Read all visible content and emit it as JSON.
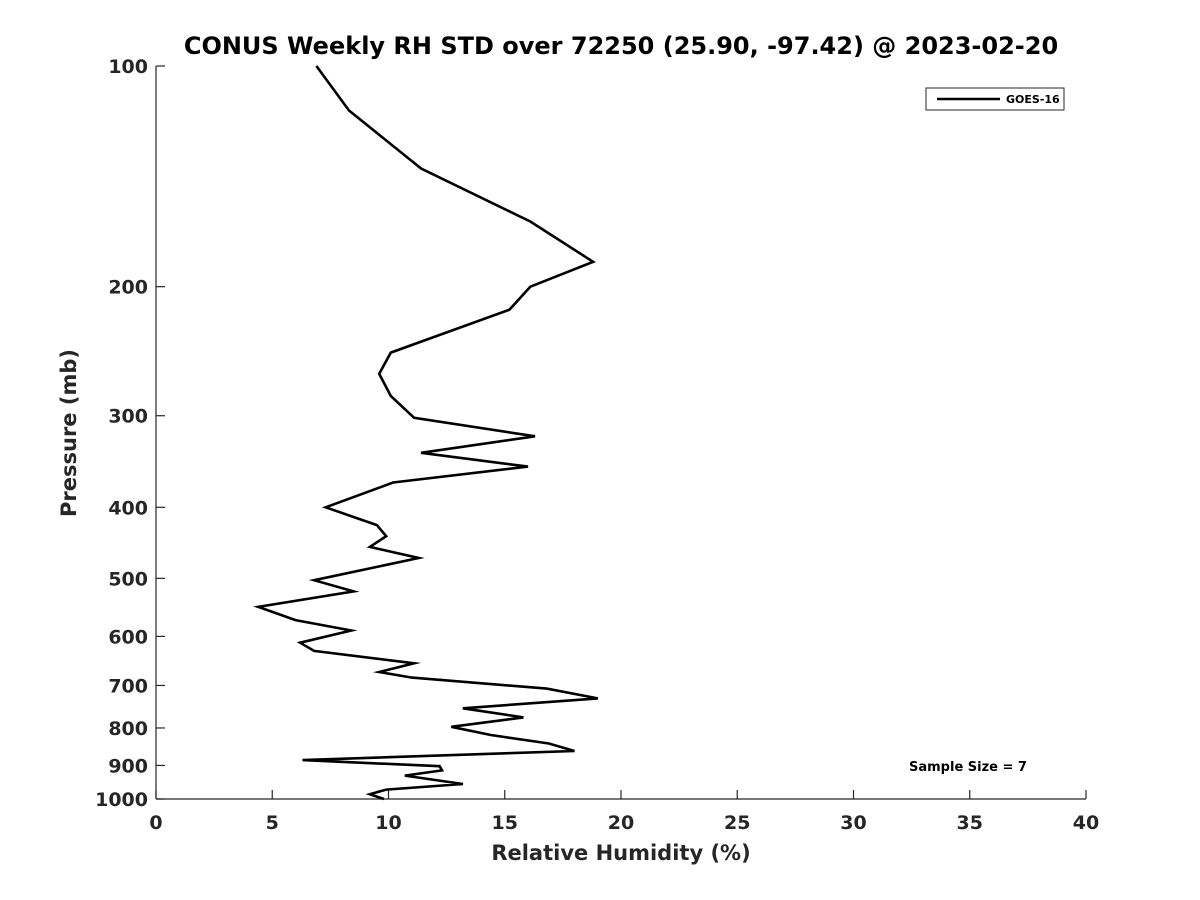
{
  "chart_data": {
    "type": "line",
    "title": "CONUS Weekly RH STD over 72250 (25.90, -97.42) @ 2023-02-20",
    "xlabel": "Relative Humidity (%)",
    "ylabel": "Pressure (mb)",
    "xlim": [
      0,
      40
    ],
    "ylim": [
      100,
      1000
    ],
    "yscale": "log",
    "y_reversed": true,
    "grid": false,
    "x_ticks": [
      0,
      5,
      10,
      15,
      20,
      25,
      30,
      35,
      40
    ],
    "y_ticks": [
      100,
      200,
      300,
      400,
      500,
      600,
      700,
      800,
      900,
      1000
    ],
    "legend_position": "top-right",
    "annotation": "Sample Size = 7",
    "series": [
      {
        "name": "GOES-16",
        "color": "#000000",
        "x": [
          6.9,
          8.3,
          11.4,
          16.1,
          18.8,
          16.1,
          15.2,
          10.1,
          9.6,
          10.1,
          11.1,
          16.3,
          11.4,
          16.0,
          10.2,
          7.3,
          9.5,
          9.9,
          9.2,
          11.3,
          6.8,
          8.5,
          4.4,
          6.0,
          8.4,
          6.2,
          6.8,
          11.1,
          9.6,
          11.0,
          16.8,
          19.0,
          13.2,
          15.8,
          12.7,
          14.4,
          16.9,
          18.0,
          6.3,
          12.2,
          12.3,
          10.7,
          13.2,
          9.9,
          9.2,
          9.8
        ],
        "y": [
          100,
          115,
          138,
          163,
          185,
          200,
          215,
          246,
          263,
          282,
          302,
          320,
          337,
          352,
          370,
          400,
          423,
          438,
          453,
          469,
          503,
          521,
          547,
          570,
          589,
          612,
          628,
          653,
          671,
          683,
          707,
          729,
          752,
          774,
          797,
          818,
          840,
          860,
          885,
          902,
          914,
          929,
          954,
          971,
          985,
          1000
        ]
      }
    ]
  }
}
